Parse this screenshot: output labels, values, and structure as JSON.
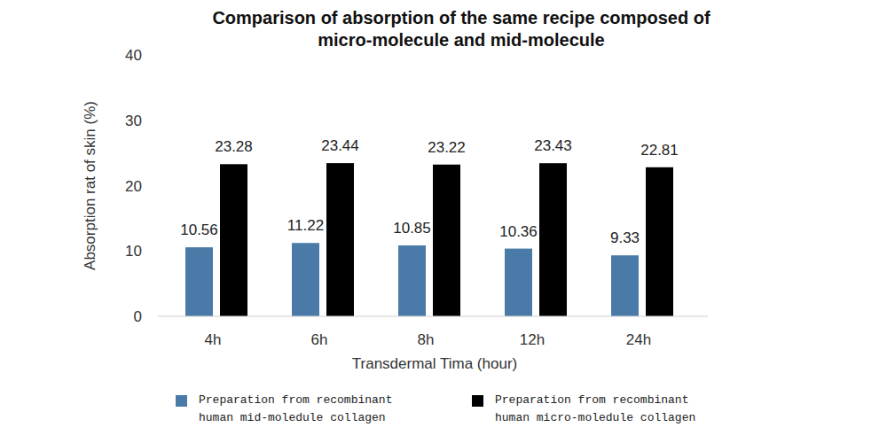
{
  "chart_data": {
    "type": "bar",
    "title": "Comparison of absorption of the same recipe composed of micro-molecule and mid-molecule",
    "x_label": "Transdermal Tima (hour)",
    "y_label": "Absorption rat of skin (%)",
    "categories": [
      "4h",
      "6h",
      "8h",
      "12h",
      "24h"
    ],
    "series": [
      {
        "name": "Preparation from recombinant human mid-moledule collagen",
        "color": "#4a7aa7",
        "values": [
          10.56,
          11.22,
          10.85,
          10.36,
          9.33
        ]
      },
      {
        "name": "Preparation from recombinant human micro-moledule collagen",
        "color": "#000000",
        "values": [
          23.28,
          23.44,
          23.22,
          23.43,
          22.81
        ]
      }
    ],
    "ylim": [
      0,
      40
    ],
    "yticks": [
      0,
      10,
      20,
      30,
      40
    ],
    "grid": false,
    "data_labels": true,
    "legend": "bottom"
  }
}
